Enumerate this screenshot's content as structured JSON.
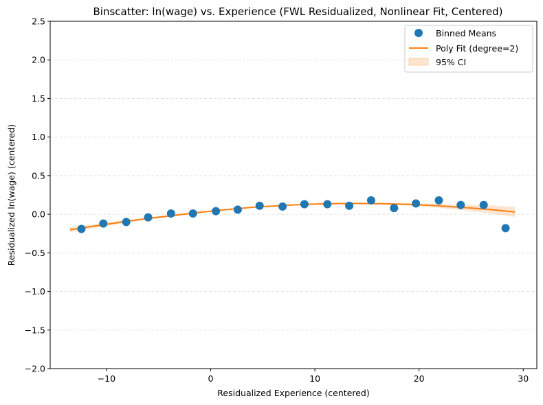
{
  "chart_data": {
    "type": "scatter",
    "title": "Binscatter: ln(wage) vs. Experience (FWL Residualized, Nonlinear Fit, Centered)",
    "xlabel": "Residualized Experience (centered)",
    "ylabel": "Residualized ln(wage) (centered)",
    "xlim": [
      -15.4,
      31.3
    ],
    "ylim": [
      -2.0,
      2.5
    ],
    "xticks": [
      -10,
      0,
      10,
      20,
      30
    ],
    "xtick_labels": [
      "−10",
      "0",
      "10",
      "20",
      "30"
    ],
    "yticks": [
      -2.0,
      -1.5,
      -1.0,
      -0.5,
      0.0,
      0.5,
      1.0,
      1.5,
      2.0,
      2.5
    ],
    "ytick_labels": [
      "−2.0",
      "−1.5",
      "−1.0",
      "−0.5",
      "0.0",
      "0.5",
      "1.0",
      "1.5",
      "2.0",
      "2.5"
    ],
    "grid": "y-dashed",
    "legend_position": "top-right",
    "series": [
      {
        "name": "Binned Means",
        "kind": "scatter",
        "color": "#1f77b4",
        "x": [
          -12.4,
          -10.3,
          -8.1,
          -6.0,
          -3.8,
          -1.7,
          0.5,
          2.6,
          4.7,
          6.9,
          9.0,
          11.2,
          13.3,
          15.4,
          17.6,
          19.7,
          21.9,
          24.0,
          26.2,
          28.3
        ],
        "y": [
          -0.19,
          -0.12,
          -0.1,
          -0.04,
          0.01,
          0.01,
          0.04,
          0.06,
          0.11,
          0.1,
          0.13,
          0.13,
          0.11,
          0.18,
          0.08,
          0.14,
          0.18,
          0.12,
          0.12,
          -0.18
        ]
      },
      {
        "name": "Poly Fit (degree=2)",
        "kind": "line",
        "color": "#ff7f0e",
        "x": [
          -13.5,
          -11.0,
          -8.5,
          -6.0,
          -3.5,
          -1.0,
          1.5,
          4.0,
          6.5,
          9.0,
          11.5,
          14.0,
          16.5,
          19.0,
          21.5,
          24.0,
          26.5,
          29.2
        ],
        "y": [
          -0.2,
          -0.15,
          -0.1,
          -0.055,
          -0.015,
          0.025,
          0.06,
          0.09,
          0.11,
          0.128,
          0.138,
          0.14,
          0.137,
          0.128,
          0.112,
          0.09,
          0.066,
          0.03
        ]
      },
      {
        "name": "95% CI",
        "kind": "band",
        "color": "#ff7f0e",
        "x": [
          -13.5,
          -11.0,
          -8.5,
          -6.0,
          -3.5,
          -1.0,
          1.5,
          4.0,
          6.5,
          9.0,
          11.5,
          14.0,
          16.5,
          19.0,
          21.5,
          24.0,
          26.5,
          29.2
        ],
        "lower": [
          -0.235,
          -0.175,
          -0.12,
          -0.07,
          -0.027,
          0.015,
          0.051,
          0.082,
          0.102,
          0.12,
          0.13,
          0.131,
          0.125,
          0.112,
          0.088,
          0.055,
          0.015,
          -0.035
        ],
        "upper": [
          -0.165,
          -0.125,
          -0.08,
          -0.04,
          -0.003,
          0.035,
          0.069,
          0.098,
          0.118,
          0.136,
          0.146,
          0.149,
          0.149,
          0.144,
          0.136,
          0.125,
          0.117,
          0.095
        ]
      }
    ]
  }
}
